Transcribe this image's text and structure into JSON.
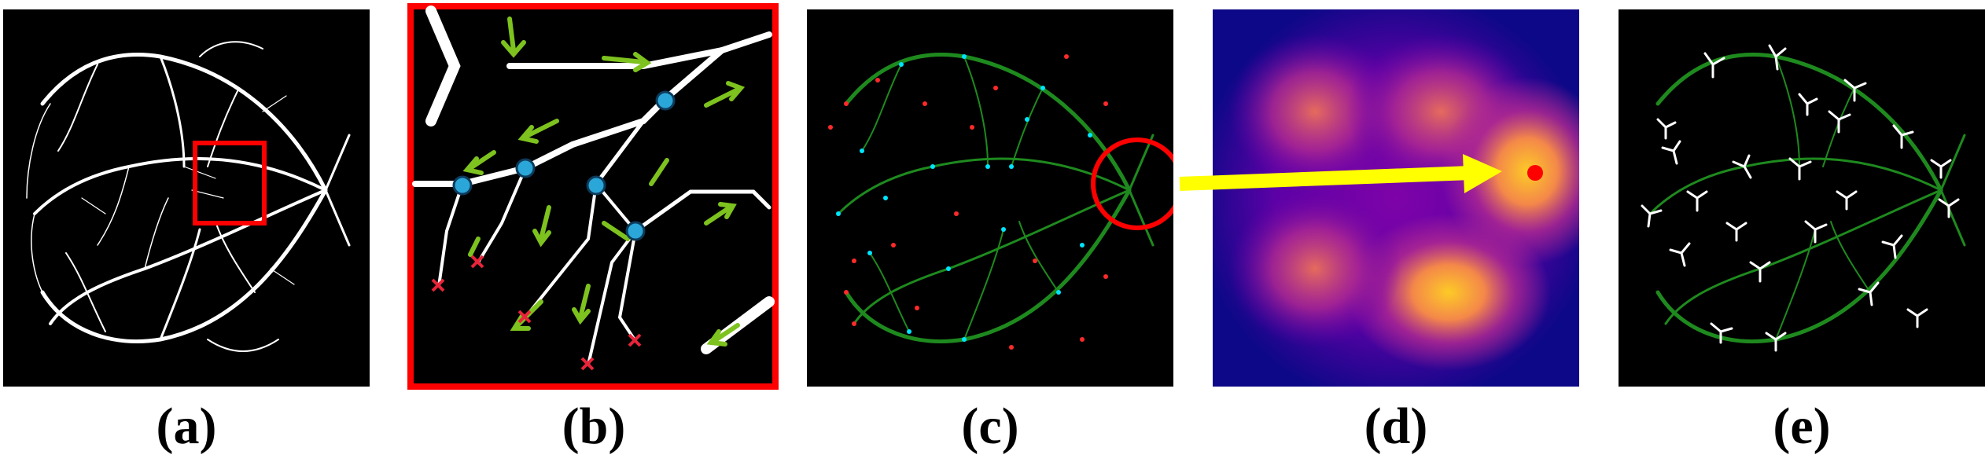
{
  "panels": [
    {
      "id": "a",
      "label": "(a)",
      "content": "binary vessel segmentation map with highlighted region"
    },
    {
      "id": "b",
      "label": "(b)",
      "content": "zoomed vessel crop with traversal arrows, junction points and endpoints"
    },
    {
      "id": "c",
      "label": "(c)",
      "content": "vessel graph with junction and endpoint nodes"
    },
    {
      "id": "d",
      "label": "(d)",
      "content": "density heatmap with peak point"
    },
    {
      "id": "e",
      "label": "(e)",
      "content": "vessel graph with white branch markers"
    }
  ],
  "colors": {
    "vessel_white": "#ffffff",
    "background_black": "#000000",
    "highlight_red": "#ff0000",
    "flow_arrow_green": "#7dc21e",
    "junction_cyan": "#2aa7d8",
    "endpoint_red": "#e8243a",
    "graph_green": "#1e8a1e",
    "node_cyan": "#00e5ff",
    "node_red": "#ff2a2a",
    "link_arrow_yellow": "#ffff00",
    "heatmap_dark": "#0d0887",
    "heatmap_mid": "#b12a90",
    "heatmap_bright": "#fdca26"
  }
}
